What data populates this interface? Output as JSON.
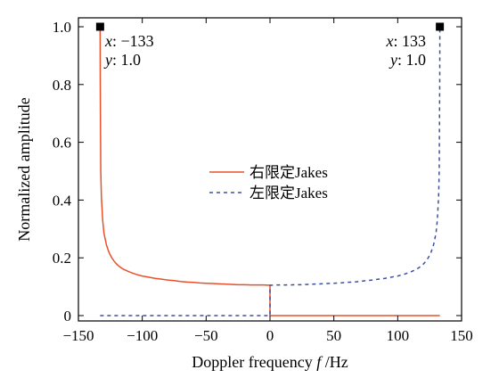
{
  "chart_data": {
    "type": "line",
    "title": "",
    "xlabel": "Doppler frequency ",
    "xlabel_var": "f",
    "xlabel_unit": " /Hz",
    "ylabel": "Normalized amplitude",
    "xlim": [
      -150,
      150
    ],
    "ylim": [
      0,
      1.0
    ],
    "xticks": [
      -150,
      -100,
      -50,
      0,
      50,
      100,
      150
    ],
    "xtick_labels": [
      "−150",
      "−100",
      "−50",
      "0",
      "50",
      "100",
      "150"
    ],
    "yticks": [
      0,
      0.2,
      0.4,
      0.6,
      0.8,
      1.0
    ],
    "ytick_labels": [
      "0",
      "0.2",
      "0.4",
      "0.6",
      "0.8",
      "1.0"
    ],
    "grid": false,
    "legend_position": "center",
    "series": [
      {
        "name": "右限定Jakes",
        "color": "#e8502a",
        "style": "solid",
        "x": [
          -133,
          -132.9,
          -132.5,
          -132,
          -131,
          -130,
          -128,
          -126,
          -124,
          -122,
          -120,
          -118,
          -115,
          -110,
          -105,
          -100,
          -95,
          -90,
          -85,
          -80,
          -75,
          -70,
          -65,
          -60,
          -55,
          -50,
          -45,
          -40,
          -35,
          -30,
          -25,
          -20,
          -15,
          -10,
          -5,
          0,
          0,
          5,
          50,
          100,
          133
        ],
        "y": [
          1.0,
          0.82,
          0.5,
          0.41,
          0.33,
          0.285,
          0.244,
          0.218,
          0.201,
          0.188,
          0.178,
          0.17,
          0.161,
          0.151,
          0.143,
          0.137,
          0.133,
          0.129,
          0.126,
          0.123,
          0.121,
          0.118,
          0.116,
          0.115,
          0.113,
          0.112,
          0.111,
          0.11,
          0.109,
          0.108,
          0.107,
          0.107,
          0.106,
          0.106,
          0.106,
          0.105,
          0,
          0,
          0,
          0,
          0
        ]
      },
      {
        "name": "左限定Jakes",
        "color": "#3a4fa0",
        "style": "dashed",
        "x": [
          -133,
          -100,
          -50,
          -5,
          0,
          0,
          5,
          10,
          15,
          20,
          25,
          30,
          35,
          40,
          45,
          50,
          55,
          60,
          65,
          70,
          75,
          80,
          85,
          90,
          95,
          100,
          105,
          110,
          115,
          118,
          120,
          122,
          124,
          126,
          128,
          130,
          131,
          132,
          132.5,
          132.9,
          133
        ],
        "y": [
          0,
          0,
          0,
          0,
          0,
          0.105,
          0.106,
          0.106,
          0.106,
          0.107,
          0.107,
          0.108,
          0.109,
          0.11,
          0.111,
          0.112,
          0.113,
          0.115,
          0.116,
          0.118,
          0.121,
          0.123,
          0.126,
          0.129,
          0.133,
          0.137,
          0.143,
          0.151,
          0.161,
          0.17,
          0.178,
          0.188,
          0.201,
          0.218,
          0.244,
          0.285,
          0.33,
          0.41,
          0.5,
          0.82,
          1.0
        ]
      }
    ],
    "annotations": [
      {
        "point": [
          -133,
          1.0
        ],
        "x_label": "x",
        "x_value": ": −133",
        "y_label": "y",
        "y_value": ": 1.0",
        "side": "right"
      },
      {
        "point": [
          133,
          1.0
        ],
        "x_label": "x",
        "x_value": ": 133",
        "y_label": "y",
        "y_value": ": 1.0",
        "side": "left"
      }
    ]
  }
}
